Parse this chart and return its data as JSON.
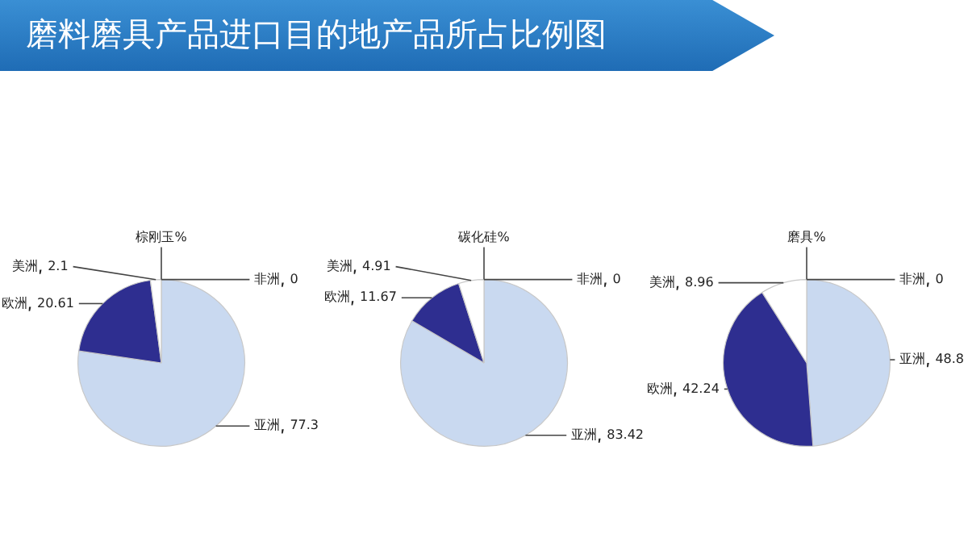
{
  "chart_data": [
    {
      "type": "pie",
      "title": "棕刚玉%",
      "annotations": [
        "磨料磨具产品进口目的地产品所占比例图"
      ],
      "categories": [
        "亚洲",
        "欧洲",
        "美洲",
        "非洲"
      ],
      "values": [
        77.3,
        20.61,
        2.1,
        0
      ],
      "value_labels": [
        "77.3",
        "20.61",
        "2.1",
        "0"
      ],
      "colors": [
        "#c9d9f0",
        "#2e2e90",
        "#ffffff",
        "#8f8f8f"
      ],
      "data_labels": true
    },
    {
      "type": "pie",
      "title": "碳化硅%",
      "categories": [
        "亚洲",
        "欧洲",
        "美洲",
        "非洲"
      ],
      "values": [
        83.42,
        11.67,
        4.91,
        0
      ],
      "value_labels": [
        "83.42",
        "11.67",
        "4.91",
        "0"
      ],
      "colors": [
        "#c9d9f0",
        "#2e2e90",
        "#ffffff",
        "#8f8f8f"
      ],
      "data_labels": true
    },
    {
      "type": "pie",
      "title": "磨具%",
      "categories": [
        "亚洲",
        "欧洲",
        "美洲",
        "非洲"
      ],
      "values": [
        48.8,
        42.24,
        8.96,
        0
      ],
      "value_labels": [
        "48.8",
        "42.24",
        "8.96",
        "0"
      ],
      "colors": [
        "#c9d9f0",
        "#2e2e90",
        "#ffffff",
        "#8f8f8f"
      ],
      "data_labels": true
    }
  ]
}
